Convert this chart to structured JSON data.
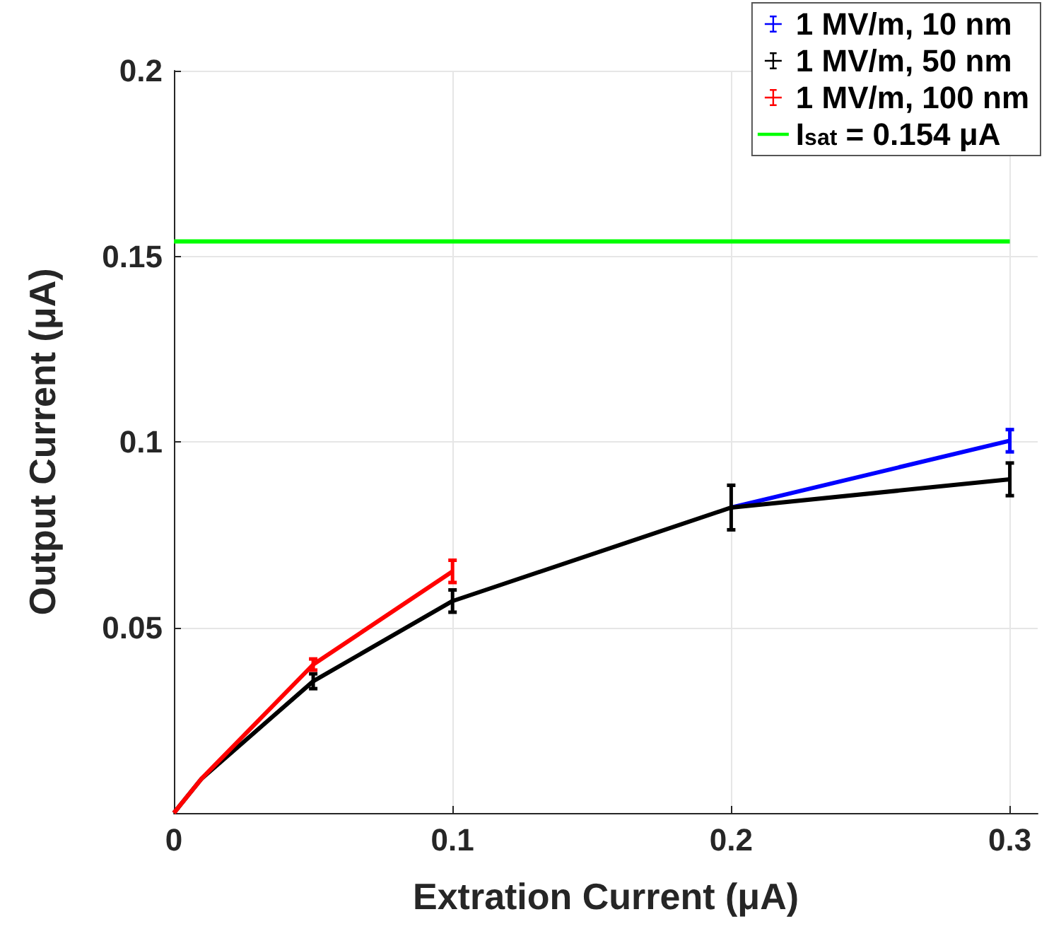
{
  "chart_data": {
    "type": "line",
    "xlabel": "Extration Current (μA)",
    "ylabel": "Output Current (μA)",
    "x": [
      0,
      0.01,
      0.05,
      0.1,
      0.2,
      0.3
    ],
    "series": [
      {
        "name": "1 MV/m, 10 nm",
        "color": "#0000ff",
        "values": [
          null,
          null,
          null,
          null,
          0.0823,
          0.1003
        ],
        "errors": [
          null,
          null,
          null,
          null,
          null,
          0.003
        ]
      },
      {
        "name": "1 MV/m, 50 nm",
        "color": "#000000",
        "values": [
          0,
          0.0093,
          0.0355,
          0.0571,
          0.0823,
          0.0899
        ],
        "errors": [
          null,
          null,
          0.002,
          0.003,
          0.006,
          0.0044
        ]
      },
      {
        "name": "1 MV/m, 100 nm",
        "color": "#ff0000",
        "values": [
          0,
          0.0093,
          0.04,
          0.0651,
          null,
          null
        ],
        "errors": [
          null,
          null,
          0.0015,
          0.003,
          null,
          null
        ]
      },
      {
        "name": "I$_{sat}$ = 0.154 μA",
        "color": "#00ff00",
        "x": [
          0,
          0.3
        ],
        "values": [
          0.154,
          0.154
        ]
      }
    ],
    "xlim": [
      0,
      0.31
    ],
    "xticks": [
      0,
      0.1,
      0.2,
      0.3
    ],
    "ylim": [
      0,
      0.2
    ],
    "yticks": [
      {
        "value": 0,
        "label": null
      },
      0.05,
      0.1,
      0.15,
      0.2
    ],
    "grid": true,
    "legend": "top right",
    "marker": "none",
    "line_style": "solid"
  }
}
